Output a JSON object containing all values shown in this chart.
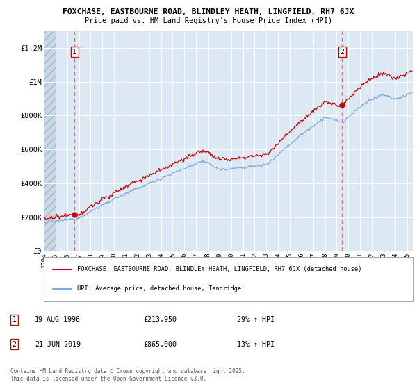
{
  "title_line1": "FOXCHASE, EASTBOURNE ROAD, BLINDLEY HEATH, LINGFIELD, RH7 6JX",
  "title_line2": "Price paid vs. HM Land Registry's House Price Index (HPI)",
  "ylim": [
    0,
    1300000
  ],
  "yticks": [
    0,
    200000,
    400000,
    600000,
    800000,
    1000000,
    1200000
  ],
  "ytick_labels": [
    "£0",
    "£200K",
    "£400K",
    "£600K",
    "£800K",
    "£1M",
    "£1.2M"
  ],
  "x_start_year": 1994,
  "x_end_year": 2025,
  "sale1_year": 1996.625,
  "sale1_price": 213950,
  "sale2_year": 2019.47,
  "sale2_price": 865000,
  "legend_label_red": "FOXCHASE, EASTBOURNE ROAD, BLINDLEY HEATH, LINGFIELD, RH7 6JX (detached house)",
  "legend_label_blue": "HPI: Average price, detached house, Tandridge",
  "annotation1_label": "1",
  "annotation1_date": "19-AUG-1996",
  "annotation1_price": "£213,950",
  "annotation1_hpi": "29% ↑ HPI",
  "annotation2_label": "2",
  "annotation2_date": "21-JUN-2019",
  "annotation2_price": "£865,000",
  "annotation2_hpi": "13% ↑ HPI",
  "footer": "Contains HM Land Registry data © Crown copyright and database right 2025.\nThis data is licensed under the Open Government Licence v3.0.",
  "bg_color": "#dce9f5",
  "red_color": "#cc0000",
  "blue_color": "#7aabdb",
  "grid_color": "#ffffff",
  "dashed_line_color": "#ff6666"
}
